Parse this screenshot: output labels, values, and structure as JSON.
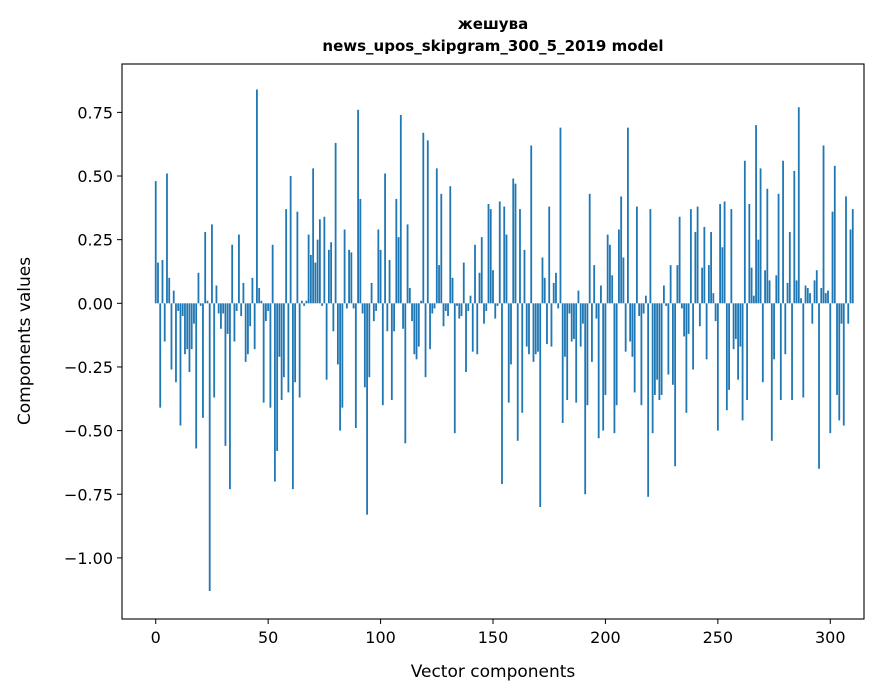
{
  "chart_data": {
    "type": "bar",
    "title_line1": "жешува",
    "title_line2": "news_upos_skipgram_300_5_2019 model",
    "xlabel": "Vector components",
    "ylabel": "Components values",
    "xlim": [
      -15,
      315
    ],
    "ylim": [
      -1.24,
      0.94
    ],
    "xticks": [
      0,
      50,
      100,
      150,
      200,
      250,
      300
    ],
    "yticks": [
      0.75,
      0.5,
      0.25,
      0.0,
      -0.25,
      -0.5,
      -0.75,
      -1.0
    ],
    "ytick_labels": [
      "0.75",
      "0.50",
      "0.25",
      "0.00",
      "−0.25",
      "−0.50",
      "−0.75",
      "−1.00"
    ],
    "bar_color": "#1f77b4",
    "values": [
      0.48,
      0.16,
      -0.41,
      0.17,
      -0.15,
      0.51,
      0.1,
      -0.26,
      0.05,
      -0.31,
      -0.03,
      -0.48,
      -0.05,
      -0.2,
      -0.18,
      -0.27,
      -0.18,
      -0.08,
      -0.57,
      0.12,
      -0.01,
      -0.45,
      0.28,
      0.01,
      -1.13,
      0.31,
      -0.37,
      0.07,
      -0.04,
      -0.1,
      -0.04,
      -0.56,
      -0.12,
      -0.73,
      0.23,
      -0.15,
      -0.03,
      0.27,
      -0.05,
      0.08,
      -0.23,
      -0.2,
      -0.09,
      0.1,
      -0.18,
      0.84,
      0.06,
      0.01,
      -0.39,
      -0.07,
      -0.03,
      -0.41,
      0.23,
      -0.7,
      -0.58,
      -0.21,
      -0.38,
      -0.29,
      0.37,
      -0.35,
      0.5,
      -0.73,
      -0.31,
      0.36,
      -0.37,
      0.01,
      -0.01,
      0.01,
      0.27,
      0.19,
      0.53,
      0.16,
      0.25,
      0.33,
      -0.01,
      0.34,
      -0.3,
      0.21,
      0.24,
      -0.11,
      0.63,
      -0.24,
      -0.5,
      -0.41,
      0.29,
      -0.02,
      0.21,
      0.2,
      -0.02,
      -0.49,
      0.76,
      0.41,
      -0.04,
      -0.33,
      -0.83,
      -0.29,
      0.08,
      -0.07,
      -0.03,
      0.29,
      0.21,
      -0.4,
      0.51,
      -0.11,
      0.17,
      -0.38,
      -0.11,
      0.41,
      0.26,
      0.74,
      -0.1,
      -0.55,
      0.31,
      0.06,
      -0.07,
      -0.2,
      -0.22,
      -0.17,
      0.01,
      0.67,
      -0.29,
      0.64,
      -0.18,
      -0.04,
      -0.02,
      0.53,
      0.15,
      0.43,
      -0.09,
      -0.03,
      -0.05,
      0.46,
      0.1,
      -0.51,
      -0.01,
      -0.06,
      -0.05,
      0.16,
      -0.27,
      -0.03,
      0.03,
      -0.19,
      0.23,
      -0.2,
      0.12,
      0.26,
      -0.08,
      -0.03,
      0.39,
      0.37,
      0.13,
      -0.06,
      -0.01,
      0.4,
      -0.71,
      0.38,
      0.27,
      -0.39,
      -0.24,
      0.49,
      0.47,
      -0.54,
      0.37,
      -0.43,
      0.21,
      -0.17,
      -0.2,
      0.62,
      -0.23,
      -0.2,
      -0.19,
      -0.8,
      0.18,
      0.1,
      -0.16,
      0.38,
      -0.17,
      0.08,
      0.12,
      -0.02,
      0.69,
      -0.47,
      -0.21,
      -0.38,
      -0.04,
      -0.15,
      -0.14,
      -0.39,
      0.05,
      -0.17,
      -0.08,
      -0.75,
      -0.4,
      0.43,
      -0.23,
      0.15,
      -0.06,
      -0.53,
      0.07,
      -0.5,
      -0.36,
      0.27,
      0.23,
      0.11,
      -0.51,
      -0.4,
      0.29,
      0.42,
      0.18,
      -0.19,
      0.69,
      -0.15,
      -0.21,
      -0.35,
      0.38,
      -0.05,
      -0.4,
      -0.04,
      0.03,
      -0.76,
      0.37,
      -0.51,
      -0.36,
      -0.3,
      -0.38,
      -0.36,
      0.07,
      -0.01,
      -0.28,
      0.15,
      -0.32,
      -0.64,
      0.15,
      0.34,
      -0.02,
      -0.13,
      -0.43,
      -0.12,
      0.37,
      -0.26,
      0.28,
      0.38,
      -0.09,
      0.14,
      0.3,
      -0.22,
      0.15,
      0.28,
      0.04,
      -0.07,
      -0.5,
      0.39,
      0.22,
      0.4,
      -0.42,
      -0.34,
      0.37,
      -0.18,
      -0.14,
      -0.3,
      -0.17,
      -0.46,
      0.56,
      -0.38,
      0.39,
      0.14,
      0.03,
      0.7,
      0.25,
      0.53,
      -0.31,
      0.13,
      0.45,
      0.09,
      -0.54,
      -0.22,
      0.11,
      0.43,
      -0.38,
      0.56,
      -0.2,
      0.08,
      0.28,
      -0.38,
      0.52,
      0.09,
      0.77,
      0.02,
      -0.37,
      0.07,
      0.06,
      0.04,
      -0.08,
      0.09,
      0.13,
      -0.65,
      0.06,
      0.62,
      0.04,
      0.05,
      -0.51,
      0.36,
      0.54,
      -0.36,
      -0.46,
      -0.08,
      -0.48,
      0.42,
      -0.08,
      0.29,
      0.37
    ]
  }
}
